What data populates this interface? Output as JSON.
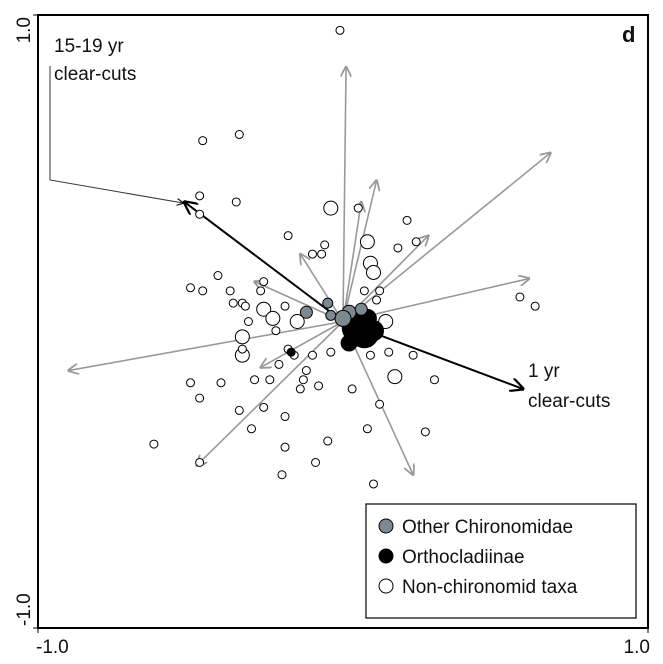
{
  "chart_data": {
    "type": "scatter",
    "panel_label": "d",
    "xlim": [
      -1,
      1
    ],
    "ylim": [
      -1,
      1
    ],
    "xticks": [
      {
        "value": -1,
        "label": "-1.0"
      },
      {
        "value": 1,
        "label": "1.0"
      }
    ],
    "yticks": [
      {
        "value": -1,
        "label": "-1.0"
      },
      {
        "value": 1,
        "label": "1.0"
      }
    ],
    "legend": "lower right",
    "series": [
      {
        "name": "Non-chironomid taxa",
        "color": "#ffffff",
        "x": [
          -0.01,
          -0.46,
          -0.34,
          -0.47,
          -0.35,
          -0.47,
          -0.04,
          0.05,
          0.21,
          -0.18,
          -0.06,
          -0.1,
          -0.07,
          0.08,
          0.18,
          0.24,
          0.09,
          0.1,
          -0.41,
          -0.5,
          -0.46,
          -0.26,
          -0.37,
          -0.27,
          0.12,
          -0.36,
          -0.33,
          -0.32,
          -0.26,
          -0.19,
          -0.15,
          -0.23,
          -0.22,
          -0.31,
          -0.33,
          -0.33,
          -0.33,
          -0.18,
          -0.16,
          -0.1,
          -0.04,
          -0.21,
          0.09,
          0.15,
          0.23,
          -0.29,
          -0.24,
          -0.12,
          -0.13,
          -0.08,
          -0.5,
          -0.4,
          -0.14,
          0.03,
          0.17,
          0.12,
          0.3,
          -0.47,
          -0.34,
          -0.26,
          -0.3,
          -0.19,
          0.08,
          0.27,
          -0.62,
          -0.19,
          -0.05,
          -0.47,
          -0.09,
          -0.2,
          0.1,
          0.58,
          0.63,
          0.14,
          0.11,
          0.07
        ],
        "values": [
          0.95,
          0.59,
          0.61,
          0.41,
          0.39,
          0.35,
          0.37,
          0.37,
          0.33,
          0.28,
          0.25,
          0.22,
          0.22,
          0.26,
          0.24,
          0.26,
          0.19,
          0.16,
          0.15,
          0.11,
          0.1,
          0.13,
          0.1,
          0.1,
          0.1,
          0.06,
          0.06,
          0.05,
          0.04,
          0.05,
          0.0,
          0.01,
          -0.03,
          0.0,
          -0.05,
          -0.11,
          -0.09,
          -0.09,
          -0.11,
          -0.11,
          -0.1,
          -0.14,
          -0.11,
          -0.1,
          -0.11,
          -0.19,
          -0.19,
          -0.16,
          -0.19,
          -0.21,
          -0.2,
          -0.2,
          -0.22,
          -0.22,
          -0.18,
          -0.27,
          -0.19,
          -0.25,
          -0.29,
          -0.28,
          -0.35,
          -0.31,
          -0.35,
          -0.36,
          -0.4,
          -0.41,
          -0.39,
          -0.46,
          -0.46,
          -0.5,
          -0.53,
          0.08,
          0.05,
          0.0,
          0.07,
          0.1
        ],
        "sizes": [
          4,
          4,
          4,
          4,
          4,
          4,
          7,
          4,
          4,
          4,
          4,
          4,
          4,
          7,
          4,
          4,
          7,
          7,
          4,
          4,
          4,
          4,
          4,
          4,
          4,
          4,
          4,
          4,
          7,
          4,
          7,
          7,
          4,
          4,
          7,
          7,
          4,
          4,
          4,
          4,
          4,
          4,
          4,
          4,
          4,
          4,
          4,
          4,
          4,
          4,
          4,
          4,
          4,
          4,
          7,
          4,
          4,
          4,
          4,
          4,
          4,
          4,
          4,
          4,
          4,
          4,
          4,
          4,
          4,
          4,
          4,
          4,
          4,
          7,
          4,
          4
        ]
      },
      {
        "name": "Orthocladiinae",
        "color": "#000000",
        "x": [
          0.05,
          0.07,
          0.03,
          0.1,
          0.02,
          0.08,
          -0.17
        ],
        "values": [
          -0.02,
          -0.04,
          0.0,
          -0.03,
          -0.07,
          0.01,
          -0.1
        ],
        "sizes": [
          16,
          14,
          10,
          10,
          8,
          9,
          4
        ]
      },
      {
        "name": "Other Chironomidae",
        "color": "#7d8991",
        "x": [
          -0.12,
          -0.05,
          0.02,
          0.0,
          0.06,
          -0.04
        ],
        "values": [
          0.03,
          0.06,
          0.03,
          0.01,
          0.04,
          0.02
        ],
        "sizes": [
          6,
          5,
          7,
          8,
          6,
          5
        ]
      }
    ],
    "arrows": [
      {
        "x": -0.52,
        "y": 0.39,
        "color": "#000000"
      },
      {
        "x": 0.59,
        "y": -0.22,
        "color": "#000000"
      },
      {
        "x": 0.01,
        "y": 0.83,
        "color": "#999999"
      },
      {
        "x": 0.68,
        "y": 0.55,
        "color": "#999999"
      },
      {
        "x": 0.11,
        "y": 0.46,
        "color": "#999999"
      },
      {
        "x": 0.28,
        "y": 0.28,
        "color": "#999999"
      },
      {
        "x": 0.61,
        "y": 0.14,
        "color": "#999999"
      },
      {
        "x": -0.9,
        "y": -0.16,
        "color": "#999999"
      },
      {
        "x": -0.48,
        "y": -0.47,
        "color": "#999999"
      },
      {
        "x": -0.27,
        "y": -0.15,
        "color": "#999999"
      },
      {
        "x": -0.29,
        "y": 0.13,
        "color": "#999999"
      },
      {
        "x": -0.14,
        "y": 0.22,
        "color": "#999999"
      },
      {
        "x": 0.23,
        "y": -0.5,
        "color": "#999999"
      },
      {
        "x": 0.06,
        "y": 0.39,
        "color": "#999999"
      }
    ],
    "annotations": [
      {
        "lines": [
          "15-19 yr",
          "clear-cuts"
        ]
      },
      {
        "lines": [
          "1 yr",
          "clear-cuts"
        ]
      }
    ]
  }
}
